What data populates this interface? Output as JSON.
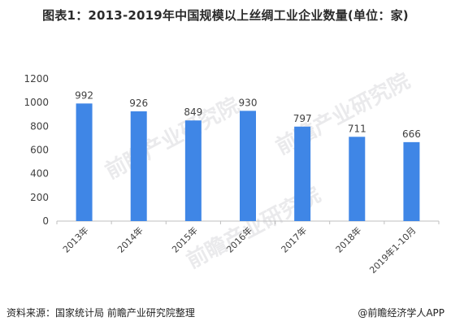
{
  "title": "图表1：2013-2019年中国规模以上丝绸工业企业数量(单位：家)",
  "watermark": "前瞻产业研究院",
  "footer": {
    "source": "资料来源：国家统计局 前瞻产业研究院整理",
    "brand": "@前瞻经济学人APP"
  },
  "colors": {
    "bar": "#3f86e6",
    "axis": "#bfbfbf",
    "text": "#404040"
  },
  "chart_data": {
    "type": "bar",
    "categories": [
      "2013年",
      "2014年",
      "2015年",
      "2016年",
      "2017年",
      "2018年",
      "2019年1-10月"
    ],
    "values": [
      992,
      926,
      849,
      930,
      797,
      711,
      666
    ],
    "ylim": [
      0,
      1200
    ],
    "yticks": [
      0,
      200,
      400,
      600,
      800,
      1000,
      1200
    ],
    "grid": false,
    "legend": "none"
  }
}
